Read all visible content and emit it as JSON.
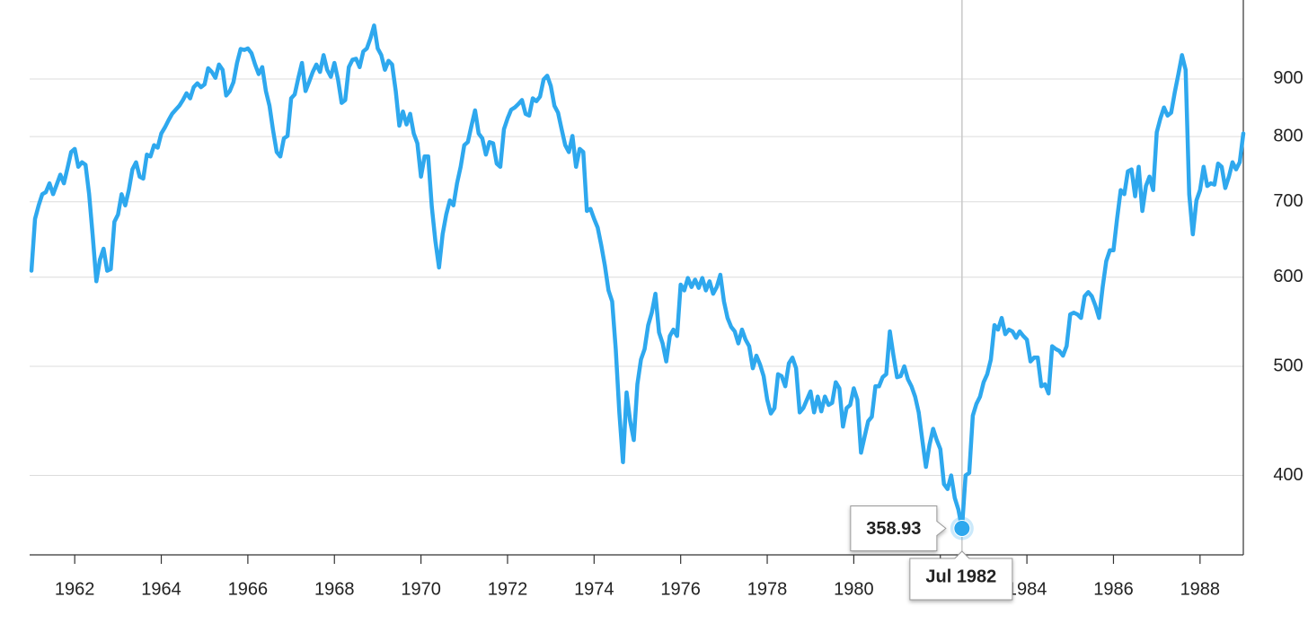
{
  "chart_data": {
    "type": "line",
    "log_y": true,
    "grid": true,
    "x": [
      1961,
      1961.083,
      1961.167,
      1961.25,
      1961.333,
      1961.417,
      1961.5,
      1961.583,
      1961.667,
      1961.75,
      1961.833,
      1961.917,
      1962,
      1962.083,
      1962.167,
      1962.25,
      1962.333,
      1962.417,
      1962.5,
      1962.583,
      1962.667,
      1962.75,
      1962.833,
      1962.917,
      1963,
      1963.083,
      1963.167,
      1963.25,
      1963.333,
      1963.417,
      1963.5,
      1963.583,
      1963.667,
      1963.75,
      1963.833,
      1963.917,
      1964,
      1964.083,
      1964.167,
      1964.25,
      1964.333,
      1964.417,
      1964.5,
      1964.583,
      1964.667,
      1964.75,
      1964.833,
      1964.917,
      1965,
      1965.083,
      1965.167,
      1965.25,
      1965.333,
      1965.417,
      1965.5,
      1965.583,
      1965.667,
      1965.75,
      1965.833,
      1965.917,
      1966,
      1966.083,
      1966.167,
      1966.25,
      1966.333,
      1966.417,
      1966.5,
      1966.583,
      1966.667,
      1966.75,
      1966.833,
      1966.917,
      1967,
      1967.083,
      1967.167,
      1967.25,
      1967.333,
      1967.417,
      1967.5,
      1967.583,
      1967.667,
      1967.75,
      1967.833,
      1967.917,
      1968,
      1968.083,
      1968.167,
      1968.25,
      1968.333,
      1968.417,
      1968.5,
      1968.583,
      1968.667,
      1968.75,
      1968.833,
      1968.917,
      1969,
      1969.083,
      1969.167,
      1969.25,
      1969.333,
      1969.417,
      1969.5,
      1969.583,
      1969.667,
      1969.75,
      1969.833,
      1969.917,
      1970,
      1970.083,
      1970.167,
      1970.25,
      1970.333,
      1970.417,
      1970.5,
      1970.583,
      1970.667,
      1970.75,
      1970.833,
      1970.917,
      1971,
      1971.083,
      1971.167,
      1971.25,
      1971.333,
      1971.417,
      1971.5,
      1971.583,
      1971.667,
      1971.75,
      1971.833,
      1971.917,
      1972,
      1972.083,
      1972.167,
      1972.25,
      1972.333,
      1972.417,
      1972.5,
      1972.583,
      1972.667,
      1972.75,
      1972.833,
      1972.917,
      1973,
      1973.083,
      1973.167,
      1973.25,
      1973.333,
      1973.417,
      1973.5,
      1973.583,
      1973.667,
      1973.75,
      1973.833,
      1973.917,
      1974,
      1974.083,
      1974.167,
      1974.25,
      1974.333,
      1974.417,
      1974.5,
      1974.583,
      1974.667,
      1974.75,
      1974.833,
      1974.917,
      1975,
      1975.083,
      1975.167,
      1975.25,
      1975.333,
      1975.417,
      1975.5,
      1975.583,
      1975.667,
      1975.75,
      1975.833,
      1975.917,
      1976,
      1976.083,
      1976.167,
      1976.25,
      1976.333,
      1976.417,
      1976.5,
      1976.583,
      1976.667,
      1976.75,
      1976.833,
      1976.917,
      1977,
      1977.083,
      1977.167,
      1977.25,
      1977.333,
      1977.417,
      1977.5,
      1977.583,
      1977.667,
      1977.75,
      1977.833,
      1977.917,
      1978,
      1978.083,
      1978.167,
      1978.25,
      1978.333,
      1978.417,
      1978.5,
      1978.583,
      1978.667,
      1978.75,
      1978.833,
      1978.917,
      1979,
      1979.083,
      1979.167,
      1979.25,
      1979.333,
      1979.417,
      1979.5,
      1979.583,
      1979.667,
      1979.75,
      1979.833,
      1979.917,
      1980,
      1980.083,
      1980.167,
      1980.25,
      1980.333,
      1980.417,
      1980.5,
      1980.583,
      1980.667,
      1980.75,
      1980.833,
      1980.917,
      1981,
      1981.083,
      1981.167,
      1981.25,
      1981.333,
      1981.417,
      1981.5,
      1981.583,
      1981.667,
      1981.75,
      1981.833,
      1981.917,
      1982,
      1982.083,
      1982.167,
      1982.25,
      1982.333,
      1982.417,
      1982.5,
      1982.583,
      1982.667,
      1982.75,
      1982.833,
      1982.917,
      1983,
      1983.083,
      1983.167,
      1983.25,
      1983.333,
      1983.417,
      1983.5,
      1983.583,
      1983.667,
      1983.75,
      1983.833,
      1983.917,
      1984,
      1984.083,
      1984.167,
      1984.25,
      1984.333,
      1984.417,
      1984.5,
      1984.583,
      1984.667,
      1984.75,
      1984.833,
      1984.917,
      1985,
      1985.083,
      1985.167,
      1985.25,
      1985.333,
      1985.417,
      1985.5,
      1985.583,
      1985.667,
      1985.75,
      1985.833,
      1985.917,
      1986,
      1986.083,
      1986.167,
      1986.25,
      1986.333,
      1986.417,
      1986.5,
      1986.583,
      1986.667,
      1986.75,
      1986.833,
      1986.917,
      1987,
      1987.083,
      1987.167,
      1987.25,
      1987.333,
      1987.417,
      1987.5,
      1987.583,
      1987.667,
      1987.75,
      1987.833,
      1987.917,
      1988,
      1988.083,
      1988.167,
      1988.25,
      1988.333,
      1988.417,
      1988.5,
      1988.583,
      1988.667,
      1988.75,
      1988.833,
      1988.917,
      1989
    ],
    "series": [
      {
        "color": "#2ea8ee",
        "values": [
          608,
          676,
          695,
          711,
          714,
          727,
          711,
          725,
          740,
          727,
          750,
          775,
          780,
          752,
          759,
          755,
          711,
          652,
          595,
          622,
          636,
          608,
          610,
          672,
          682,
          711,
          695,
          717,
          748,
          759,
          737,
          734,
          771,
          768,
          786,
          782,
          805,
          815,
          827,
          838,
          845,
          852,
          862,
          874,
          865,
          885,
          892,
          885,
          890,
          920,
          913,
          902,
          927,
          917,
          870,
          878,
          894,
          930,
          957,
          955,
          958,
          949,
          927,
          909,
          922,
          878,
          852,
          810,
          775,
          768,
          797,
          801,
          865,
          872,
          902,
          930,
          878,
          895,
          913,
          927,
          913,
          945,
          917,
          904,
          930,
          899,
          857,
          862,
          922,
          936,
          938,
          922,
          952,
          958,
          978,
          1004,
          958,
          945,
          917,
          934,
          927,
          878,
          818,
          842,
          820,
          838,
          805,
          789,
          737,
          768,
          768,
          693,
          646,
          612,
          655,
          682,
          702,
          695,
          727,
          752,
          786,
          791,
          818,
          844,
          805,
          797,
          771,
          791,
          789,
          757,
          752,
          812,
          830,
          845,
          849,
          855,
          862,
          838,
          835,
          865,
          860,
          868,
          899,
          906,
          887,
          852,
          840,
          812,
          786,
          775,
          801,
          752,
          780,
          775,
          687,
          690,
          676,
          664,
          640,
          614,
          584,
          571,
          518,
          455,
          411,
          474,
          447,
          430,
          482,
          507,
          518,
          544,
          558,
          580,
          536,
          524,
          505,
          532,
          539,
          532,
          591,
          584,
          599,
          588,
          597,
          587,
          599,
          584,
          595,
          580,
          588,
          603,
          571,
          552,
          542,
          537,
          524,
          539,
          528,
          521,
          498,
          511,
          502,
          490,
          467,
          454,
          459,
          492,
          490,
          480,
          503,
          509,
          498,
          455,
          459,
          467,
          475,
          455,
          470,
          456,
          470,
          462,
          464,
          484,
          478,
          442,
          459,
          462,
          478,
          467,
          419,
          433,
          447,
          451,
          480,
          480,
          489,
          492,
          537,
          511,
          489,
          490,
          500,
          487,
          480,
          470,
          455,
          430,
          407,
          426,
          440,
          430,
          422,
          393,
          389,
          400,
          382,
          373,
          358.93,
          400,
          402,
          452,
          463,
          470,
          484,
          492,
          507,
          544,
          539,
          552,
          534,
          539,
          537,
          530,
          537,
          532,
          528,
          505,
          509,
          509,
          480,
          482,
          473,
          521,
          518,
          516,
          511,
          521,
          556,
          558,
          556,
          552,
          577,
          582,
          577,
          566,
          552,
          588,
          620,
          634,
          634,
          676,
          717,
          711,
          745,
          748,
          708,
          752,
          687,
          723,
          737,
          717,
          807,
          830,
          849,
          835,
          840,
          876,
          909,
          945,
          917,
          711,
          655,
          702,
          717,
          752,
          723,
          727,
          725,
          757,
          752,
          720,
          737,
          759,
          748,
          759,
          805
        ]
      }
    ],
    "xlim": [
      1961,
      1989
    ],
    "xticks": [
      1962,
      1964,
      1966,
      1968,
      1970,
      1972,
      1974,
      1976,
      1978,
      1980,
      1982,
      1984,
      1986,
      1988
    ],
    "ylim": [
      340,
      1050
    ],
    "yticks": [
      400,
      500,
      600,
      700,
      800,
      900
    ],
    "tooltip": {
      "x": 1982.5,
      "y": 358.93,
      "label": "Jul 1982"
    }
  }
}
